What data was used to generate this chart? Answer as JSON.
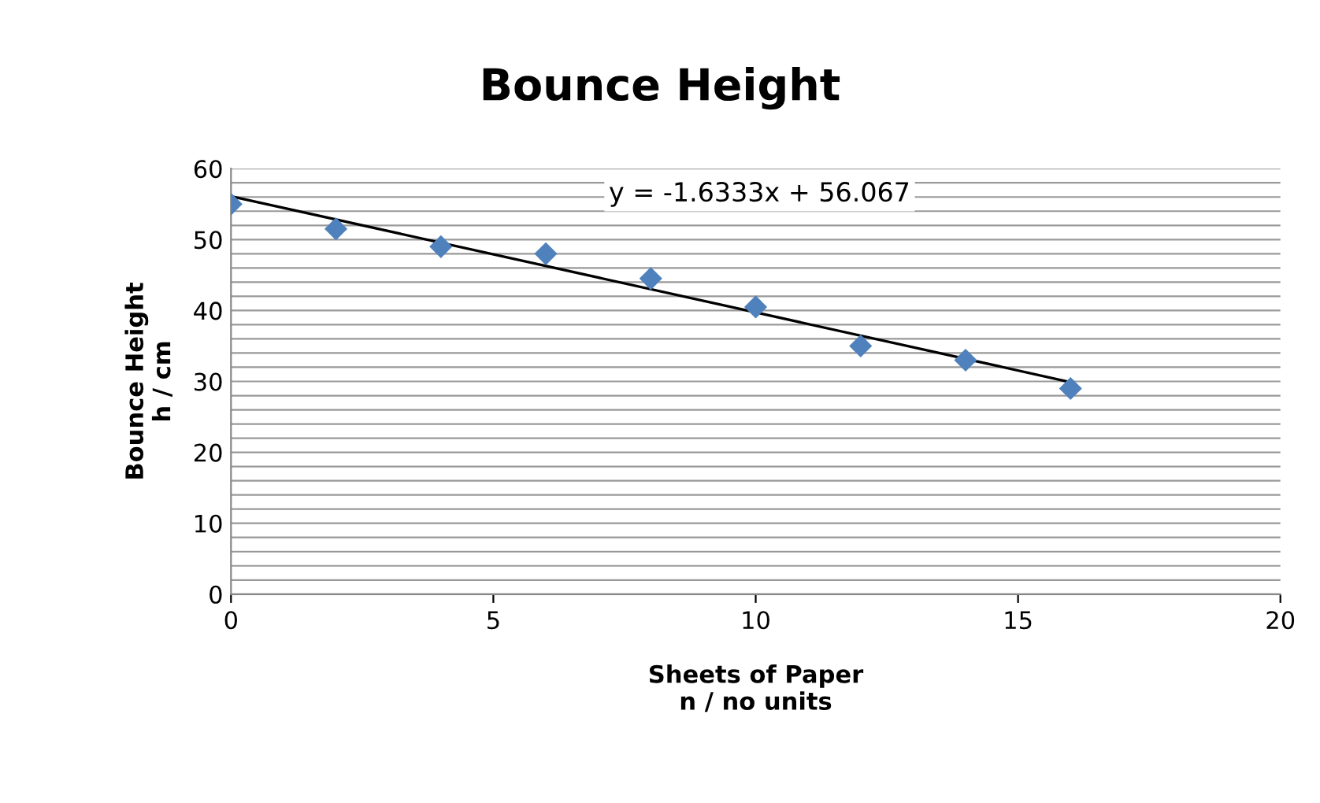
{
  "chart_data": {
    "type": "scatter",
    "title": "Bounce Height",
    "xlabel": "Sheets of Paper\nn / no units",
    "ylabel": "Bounce Height\nh / cm",
    "x": [
      0,
      2,
      4,
      6,
      8,
      10,
      12,
      14,
      16
    ],
    "series": [
      {
        "color": "#4f81bd",
        "marker": "diamond",
        "values": [
          55,
          51.5,
          49,
          48,
          44.5,
          40.5,
          35,
          33,
          29
        ]
      },
      {
        "type": "line",
        "color": "#000000",
        "x": [
          0,
          16
        ],
        "values": [
          56.1,
          29.9
        ],
        "marker": "none",
        "line_style": "solid"
      }
    ],
    "annotations": [
      "y = -1.6333x + 56.067"
    ],
    "xlim": [
      0,
      20
    ],
    "xticks": [
      0,
      5,
      10,
      15,
      20
    ],
    "ylim": [
      0,
      60
    ],
    "yticks": [
      0,
      {
        "value": 2,
        "label": null
      },
      {
        "value": 4,
        "label": null
      },
      {
        "value": 6,
        "label": null
      },
      {
        "value": 8,
        "label": null
      },
      10,
      {
        "value": 12,
        "label": null
      },
      {
        "value": 14,
        "label": null
      },
      {
        "value": 16,
        "label": null
      },
      {
        "value": 18,
        "label": null
      },
      20,
      {
        "value": 22,
        "label": null
      },
      {
        "value": 24,
        "label": null
      },
      {
        "value": 26,
        "label": null
      },
      {
        "value": 28,
        "label": null
      },
      30,
      {
        "value": 32,
        "label": null
      },
      {
        "value": 34,
        "label": null
      },
      {
        "value": 36,
        "label": null
      },
      {
        "value": 38,
        "label": null
      },
      40,
      {
        "value": 42,
        "label": null
      },
      {
        "value": 44,
        "label": null
      },
      {
        "value": 46,
        "label": null
      },
      {
        "value": 48,
        "label": null
      },
      50,
      {
        "value": 52,
        "label": null
      },
      {
        "value": 54,
        "label": null
      },
      {
        "value": 56,
        "label": null
      },
      {
        "value": 58,
        "label": null
      },
      60
    ],
    "grid": "y",
    "legend": false
  }
}
